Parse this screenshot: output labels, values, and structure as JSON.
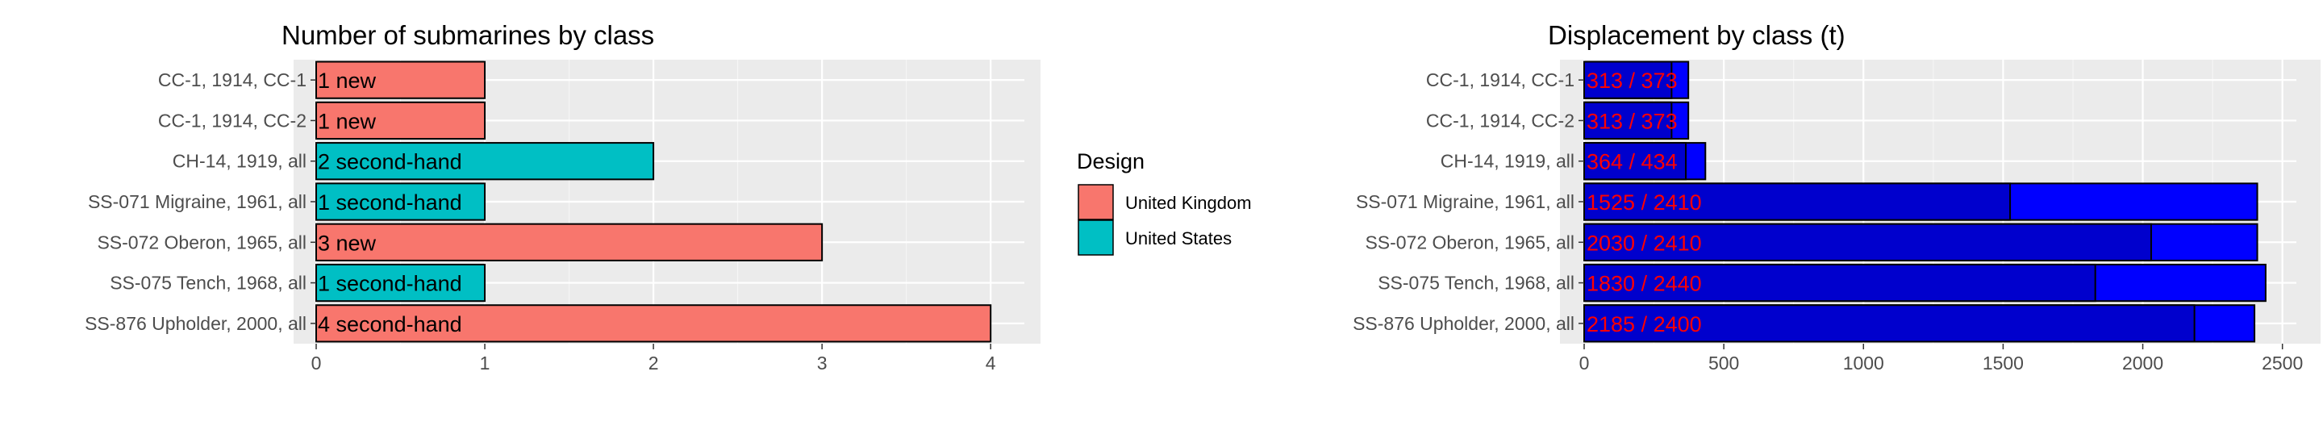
{
  "colors": {
    "panel_bg": "#ebebeb",
    "grid_major": "#ffffff",
    "united_kingdom": "#f8766d",
    "united_states": "#00bfc4",
    "displacement_total": "#0000ff",
    "displacement_surfaced": "#0000cd",
    "bar_outline": "#000000",
    "label_red": "#ff0000"
  },
  "chart_data": [
    {
      "type": "bar",
      "orientation": "horizontal",
      "title": "Number of submarines by class",
      "xlabel": "",
      "ylabel": "",
      "xlim": [
        0,
        4.2
      ],
      "xticks": [
        "0",
        "1",
        "2",
        "3",
        "4"
      ],
      "grid": true,
      "categories": [
        "CC-1, 1914, CC-1",
        "CC-1, 1914, CC-2",
        "CH-14, 1919, all",
        "SS-071 Migraine, 1961, all",
        "SS-072 Oberon, 1965, all",
        "SS-075 Tench, 1968, all",
        "SS-876 Upholder, 2000, all"
      ],
      "values": [
        1,
        1,
        2,
        1,
        3,
        1,
        4
      ],
      "design": [
        "United Kingdom",
        "United Kingdom",
        "United States",
        "United States",
        "United Kingdom",
        "United States",
        "United Kingdom"
      ],
      "labels": [
        "1 new",
        "1 new",
        "2 second-hand",
        "1 second-hand",
        "3 new",
        "1 second-hand",
        "4 second-hand"
      ],
      "legend": {
        "title": "Design",
        "position": "right",
        "entries": [
          "United Kingdom",
          "United States"
        ]
      }
    },
    {
      "type": "bar",
      "orientation": "horizontal",
      "title": "Displacement by class (t)",
      "xlabel": "",
      "ylabel": "",
      "xlim": [
        0,
        2550
      ],
      "xticks": [
        "0",
        "500",
        "1000",
        "1500",
        "2000",
        "2500"
      ],
      "grid": true,
      "categories": [
        "CC-1, 1914, CC-1",
        "CC-1, 1914, CC-2",
        "CH-14, 1919, all",
        "SS-071 Migraine, 1961, all",
        "SS-072 Oberon, 1965, all",
        "SS-075 Tench, 1968, all",
        "SS-876 Upholder, 2000, all"
      ],
      "series": [
        {
          "values": [
            313,
            313,
            364,
            1525,
            2030,
            1830,
            2185
          ]
        },
        {
          "values": [
            373,
            373,
            434,
            2410,
            2410,
            2440,
            2400
          ]
        }
      ],
      "labels": [
        "313 / 373",
        "313 / 373",
        "364 / 434",
        "1525 / 2410",
        "2030 / 2410",
        "1830 / 2440",
        "2185 / 2400"
      ]
    }
  ]
}
